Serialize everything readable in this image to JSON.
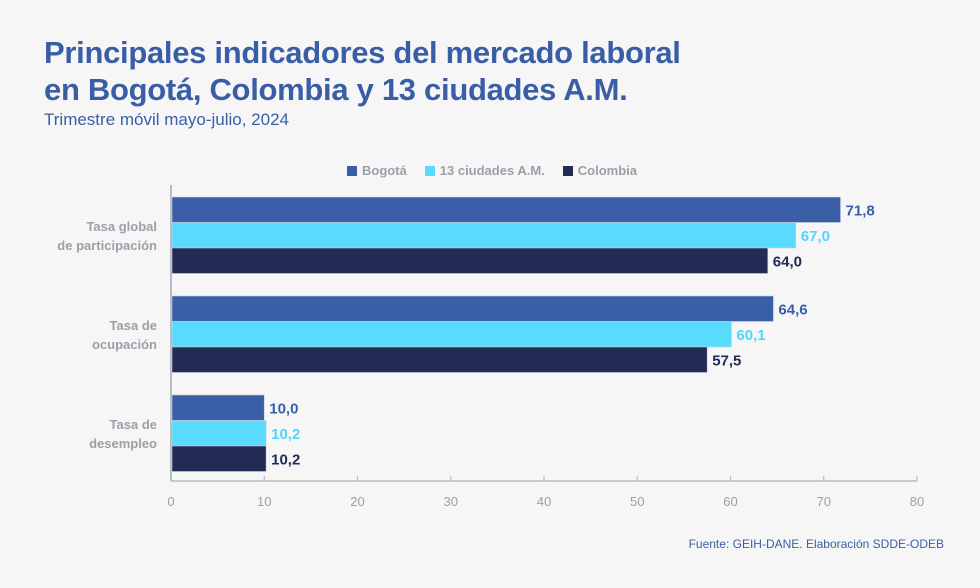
{
  "chart_data": {
    "type": "bar",
    "orientation": "horizontal",
    "title_lines": [
      "Principales indicadores del mercado laboral",
      "en Bogotá, Colombia y 13 ciudades A.M."
    ],
    "subtitle": "Trimestre móvil mayo-julio, 2024",
    "categories": [
      [
        "Tasa global",
        "de participación"
      ],
      [
        "Tasa de",
        "ocupación"
      ],
      [
        "Tasa de",
        "desempleo"
      ]
    ],
    "series": [
      {
        "name": "Bogotá",
        "color": "#3a5fa6",
        "label_color": "#3a5ea6",
        "values": [
          71.8,
          64.6,
          10.0
        ],
        "labels": [
          "71,8",
          "64,6",
          "10,0"
        ]
      },
      {
        "name": "13 ciudades A.M.",
        "color": "#58dbfd",
        "label_color": "#4fd6fb",
        "values": [
          67.0,
          60.1,
          10.2
        ],
        "labels": [
          "67,0",
          "60,1",
          "10,2"
        ]
      },
      {
        "name": "Colombia",
        "color": "#212b54",
        "label_color": "#212b54",
        "values": [
          64.0,
          57.5,
          10.2
        ],
        "labels": [
          "64,0",
          "57,5",
          "10,2"
        ]
      }
    ],
    "xlim": [
      0,
      80
    ],
    "xticks": [
      0,
      10,
      20,
      30,
      40,
      50,
      60,
      70,
      80
    ],
    "grid": false,
    "legend_position": "top-center",
    "xlabel": "",
    "ylabel": ""
  },
  "source": "Fuente: GEIH-DANE. Elaboración SDDE-ODEB"
}
